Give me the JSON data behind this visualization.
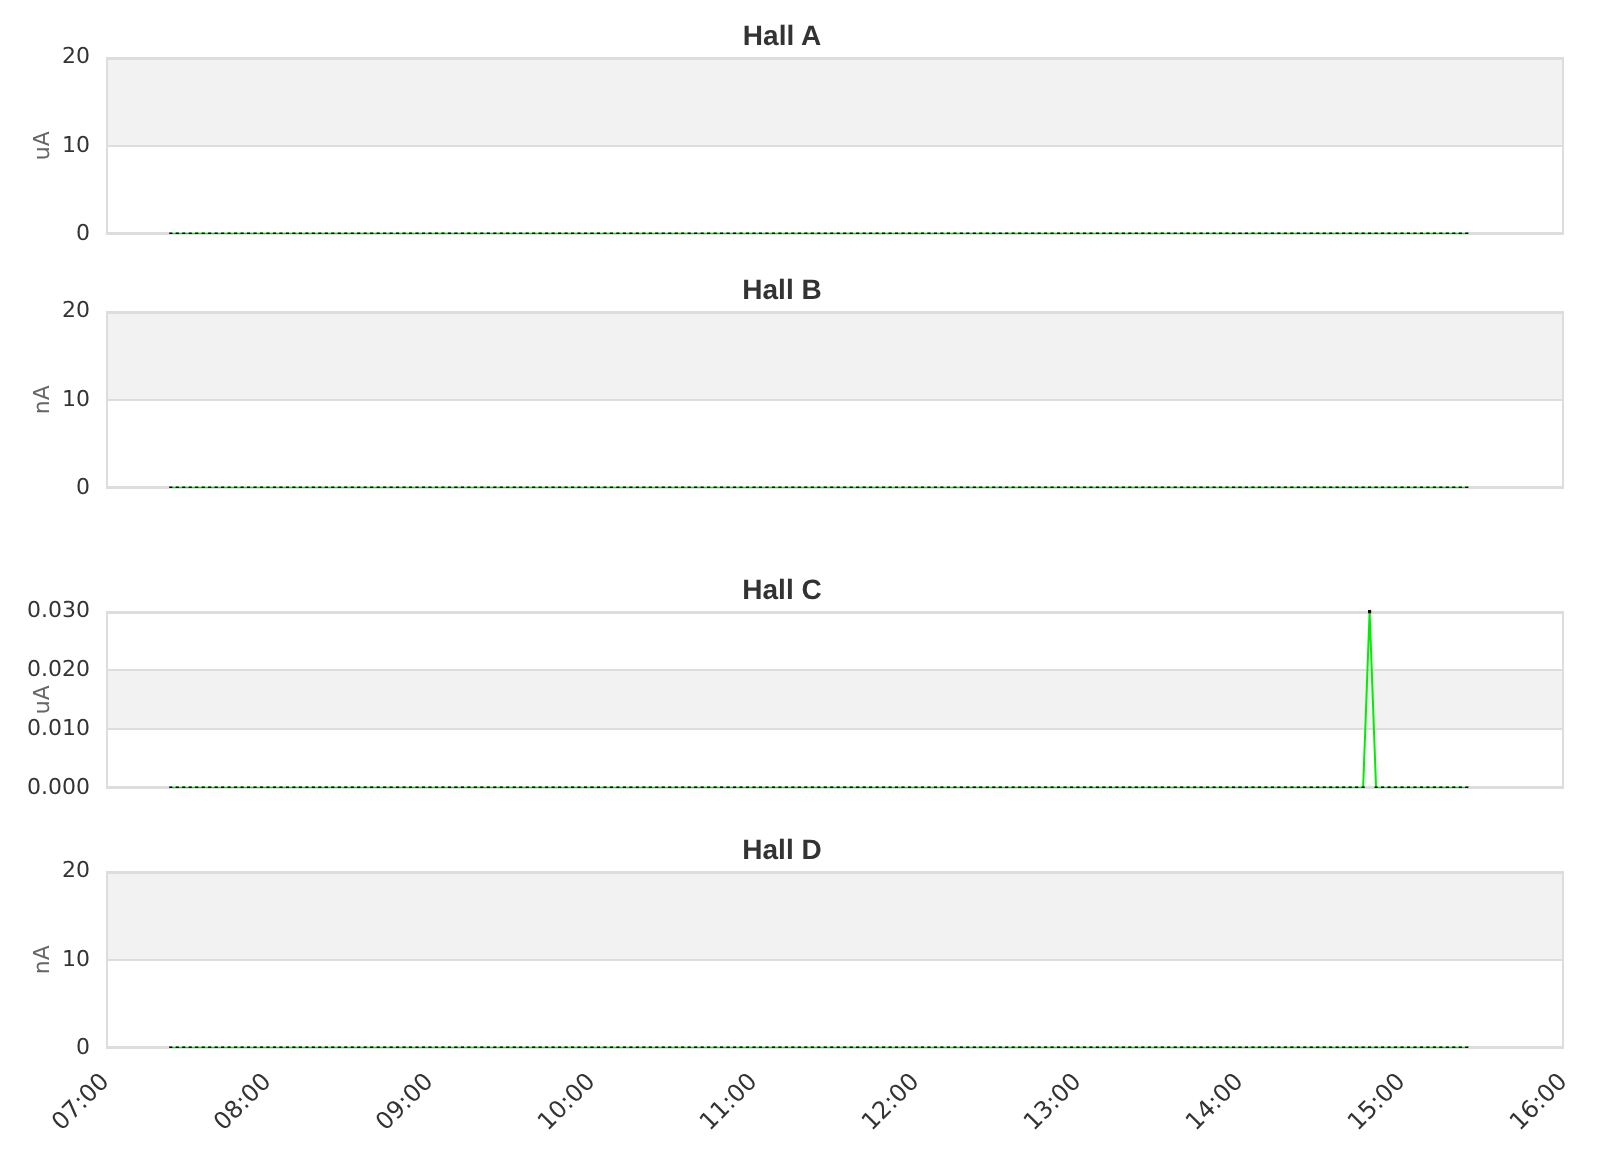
{
  "chart_data": [
    {
      "type": "line",
      "title": "Hall A",
      "ylabel": "uA",
      "tick_labels": "y",
      "grid": "y",
      "marker": "square",
      "x": [
        7.4,
        7.44,
        7.48,
        7.52,
        7.56,
        7.6,
        7.64,
        7.68,
        7.72,
        7.76,
        7.8,
        7.84,
        7.88,
        7.92,
        7.96,
        8,
        8.04,
        8.08,
        8.12,
        8.16,
        8.2,
        8.24,
        8.28,
        8.32,
        8.36,
        8.4,
        8.44,
        8.48,
        8.52,
        8.56,
        8.6,
        8.64,
        8.68,
        8.72,
        8.76,
        8.8,
        8.84,
        8.88,
        8.92,
        8.96,
        9,
        9.04,
        9.08,
        9.12,
        9.16,
        9.2,
        9.24,
        9.28,
        9.32,
        9.36,
        9.4,
        9.44,
        9.48,
        9.52,
        9.56,
        9.6,
        9.64,
        9.68,
        9.72,
        9.76,
        9.8,
        9.84,
        9.88,
        9.92,
        9.96,
        10,
        10.04,
        10.08,
        10.12,
        10.16,
        10.2,
        10.24,
        10.28,
        10.32,
        10.36,
        10.4,
        10.44,
        10.48,
        10.52,
        10.56,
        10.6,
        10.64,
        10.68,
        10.72,
        10.76,
        10.8,
        10.84,
        10.88,
        10.92,
        10.96,
        11,
        11.04,
        11.08,
        11.12,
        11.16,
        11.2,
        11.24,
        11.28,
        11.32,
        11.36,
        11.4,
        11.44,
        11.48,
        11.52,
        11.56,
        11.6,
        11.64,
        11.68,
        11.72,
        11.76,
        11.8,
        11.84,
        11.88,
        11.92,
        11.96,
        12,
        12.04,
        12.08,
        12.12,
        12.16,
        12.2,
        12.24,
        12.28,
        12.32,
        12.36,
        12.4,
        12.44,
        12.48,
        12.52,
        12.56,
        12.6,
        12.64,
        12.68,
        12.72,
        12.76,
        12.8,
        12.84,
        12.88,
        12.92,
        12.96,
        13,
        13.04,
        13.08,
        13.12,
        13.16,
        13.2,
        13.24,
        13.28,
        13.32,
        13.36,
        13.4,
        13.44,
        13.48,
        13.52,
        13.56,
        13.6,
        13.64,
        13.68,
        13.72,
        13.76,
        13.8,
        13.84,
        13.88,
        13.92,
        13.96,
        14,
        14.04,
        14.08,
        14.12,
        14.16,
        14.2,
        14.24,
        14.28,
        14.32,
        14.36,
        14.4,
        14.44,
        14.48,
        14.52,
        14.56,
        14.6,
        14.64,
        14.68,
        14.72,
        14.76,
        14.8,
        14.84,
        14.88,
        14.92,
        14.96,
        15,
        15.04,
        15.08,
        15.12,
        15.16,
        15.2,
        15.24,
        15.28,
        15.32,
        15.36,
        15.4
      ],
      "series": [
        {
          "color": "#00ee00",
          "values": [
            0,
            0,
            0,
            0,
            0,
            0,
            0,
            0,
            0,
            0,
            0,
            0,
            0,
            0,
            0,
            0,
            0,
            0,
            0,
            0,
            0,
            0,
            0,
            0,
            0,
            0,
            0,
            0,
            0,
            0,
            0,
            0,
            0,
            0,
            0,
            0,
            0,
            0,
            0,
            0,
            0,
            0,
            0,
            0,
            0,
            0,
            0,
            0,
            0,
            0,
            0,
            0,
            0,
            0,
            0,
            0,
            0,
            0,
            0,
            0,
            0,
            0,
            0,
            0,
            0,
            0,
            0,
            0,
            0,
            0,
            0,
            0,
            0,
            0,
            0,
            0,
            0,
            0,
            0,
            0,
            0,
            0,
            0,
            0,
            0,
            0,
            0,
            0,
            0,
            0,
            0,
            0,
            0,
            0,
            0,
            0,
            0,
            0,
            0,
            0,
            0,
            0,
            0,
            0,
            0,
            0,
            0,
            0,
            0,
            0,
            0,
            0,
            0,
            0,
            0,
            0,
            0,
            0,
            0,
            0,
            0,
            0,
            0,
            0,
            0,
            0,
            0,
            0,
            0,
            0,
            0,
            0,
            0,
            0,
            0,
            0,
            0,
            0,
            0,
            0,
            0,
            0,
            0,
            0,
            0,
            0,
            0,
            0,
            0,
            0,
            0,
            0,
            0,
            0,
            0,
            0,
            0,
            0,
            0,
            0,
            0,
            0,
            0,
            0,
            0,
            0,
            0,
            0,
            0,
            0,
            0,
            0,
            0,
            0,
            0,
            0,
            0,
            0,
            0,
            0,
            0,
            0,
            0,
            0,
            0,
            0,
            0,
            0,
            0,
            0,
            0,
            0,
            0,
            0,
            0,
            0,
            0,
            0,
            0,
            0,
            0
          ]
        }
      ],
      "xlim": [
        7,
        16
      ],
      "ylim": [
        0,
        20
      ],
      "yticks": [
        0,
        10,
        20
      ],
      "bands": [
        {
          "axis": "y",
          "from": 10,
          "to": 20,
          "color": "#f2f2f2"
        }
      ]
    },
    {
      "type": "line",
      "title": "Hall B",
      "ylabel": "nA",
      "tick_labels": "y",
      "grid": "y",
      "marker": "square",
      "x": [
        7.4,
        7.44,
        7.48,
        7.52,
        7.56,
        7.6,
        7.64,
        7.68,
        7.72,
        7.76,
        7.8,
        7.84,
        7.88,
        7.92,
        7.96,
        8,
        8.04,
        8.08,
        8.12,
        8.16,
        8.2,
        8.24,
        8.28,
        8.32,
        8.36,
        8.4,
        8.44,
        8.48,
        8.52,
        8.56,
        8.6,
        8.64,
        8.68,
        8.72,
        8.76,
        8.8,
        8.84,
        8.88,
        8.92,
        8.96,
        9,
        9.04,
        9.08,
        9.12,
        9.16,
        9.2,
        9.24,
        9.28,
        9.32,
        9.36,
        9.4,
        9.44,
        9.48,
        9.52,
        9.56,
        9.6,
        9.64,
        9.68,
        9.72,
        9.76,
        9.8,
        9.84,
        9.88,
        9.92,
        9.96,
        10,
        10.04,
        10.08,
        10.12,
        10.16,
        10.2,
        10.24,
        10.28,
        10.32,
        10.36,
        10.4,
        10.44,
        10.48,
        10.52,
        10.56,
        10.6,
        10.64,
        10.68,
        10.72,
        10.76,
        10.8,
        10.84,
        10.88,
        10.92,
        10.96,
        11,
        11.04,
        11.08,
        11.12,
        11.16,
        11.2,
        11.24,
        11.28,
        11.32,
        11.36,
        11.4,
        11.44,
        11.48,
        11.52,
        11.56,
        11.6,
        11.64,
        11.68,
        11.72,
        11.76,
        11.8,
        11.84,
        11.88,
        11.92,
        11.96,
        12,
        12.04,
        12.08,
        12.12,
        12.16,
        12.2,
        12.24,
        12.28,
        12.32,
        12.36,
        12.4,
        12.44,
        12.48,
        12.52,
        12.56,
        12.6,
        12.64,
        12.68,
        12.72,
        12.76,
        12.8,
        12.84,
        12.88,
        12.92,
        12.96,
        13,
        13.04,
        13.08,
        13.12,
        13.16,
        13.2,
        13.24,
        13.28,
        13.32,
        13.36,
        13.4,
        13.44,
        13.48,
        13.52,
        13.56,
        13.6,
        13.64,
        13.68,
        13.72,
        13.76,
        13.8,
        13.84,
        13.88,
        13.92,
        13.96,
        14,
        14.04,
        14.08,
        14.12,
        14.16,
        14.2,
        14.24,
        14.28,
        14.32,
        14.36,
        14.4,
        14.44,
        14.48,
        14.52,
        14.56,
        14.6,
        14.64,
        14.68,
        14.72,
        14.76,
        14.8,
        14.84,
        14.88,
        14.92,
        14.96,
        15,
        15.04,
        15.08,
        15.12,
        15.16,
        15.2,
        15.24,
        15.28,
        15.32,
        15.36,
        15.4
      ],
      "series": [
        {
          "color": "#00ee00",
          "values": [
            0,
            0,
            0,
            0,
            0,
            0,
            0,
            0,
            0,
            0,
            0,
            0,
            0,
            0,
            0,
            0,
            0,
            0,
            0,
            0,
            0,
            0,
            0,
            0,
            0,
            0,
            0,
            0,
            0,
            0,
            0,
            0,
            0,
            0,
            0,
            0,
            0,
            0,
            0,
            0,
            0,
            0,
            0,
            0,
            0,
            0,
            0,
            0,
            0,
            0,
            0,
            0,
            0,
            0,
            0,
            0,
            0,
            0,
            0,
            0,
            0,
            0,
            0,
            0,
            0,
            0,
            0,
            0,
            0,
            0,
            0,
            0,
            0,
            0,
            0,
            0,
            0,
            0,
            0,
            0,
            0,
            0,
            0,
            0,
            0,
            0,
            0,
            0,
            0,
            0,
            0,
            0,
            0,
            0,
            0,
            0,
            0,
            0,
            0,
            0,
            0,
            0,
            0,
            0,
            0,
            0,
            0,
            0,
            0,
            0,
            0,
            0,
            0,
            0,
            0,
            0,
            0,
            0,
            0,
            0,
            0,
            0,
            0,
            0,
            0,
            0,
            0,
            0,
            0,
            0,
            0,
            0,
            0,
            0,
            0,
            0,
            0,
            0,
            0,
            0,
            0,
            0,
            0,
            0,
            0,
            0,
            0,
            0,
            0,
            0,
            0,
            0,
            0,
            0,
            0,
            0,
            0,
            0,
            0,
            0,
            0,
            0,
            0,
            0,
            0,
            0,
            0,
            0,
            0,
            0,
            0,
            0,
            0,
            0,
            0,
            0,
            0,
            0,
            0,
            0,
            0,
            0,
            0,
            0,
            0,
            0,
            0,
            0,
            0,
            0,
            0,
            0,
            0,
            0,
            0,
            0,
            0,
            0,
            0,
            0,
            0
          ]
        }
      ],
      "xlim": [
        7,
        16
      ],
      "ylim": [
        0,
        20
      ],
      "yticks": [
        0,
        10,
        20
      ],
      "bands": [
        {
          "axis": "y",
          "from": 10,
          "to": 20,
          "color": "#f2f2f2"
        }
      ]
    },
    {
      "type": "line",
      "title": "Hall C",
      "ylabel": "uA",
      "tick_labels": "y",
      "grid": "y",
      "marker": "square",
      "x": [
        7.4,
        7.44,
        7.48,
        7.52,
        7.56,
        7.6,
        7.64,
        7.68,
        7.72,
        7.76,
        7.8,
        7.84,
        7.88,
        7.92,
        7.96,
        8,
        8.04,
        8.08,
        8.12,
        8.16,
        8.2,
        8.24,
        8.28,
        8.32,
        8.36,
        8.4,
        8.44,
        8.48,
        8.52,
        8.56,
        8.6,
        8.64,
        8.68,
        8.72,
        8.76,
        8.8,
        8.84,
        8.88,
        8.92,
        8.96,
        9,
        9.04,
        9.08,
        9.12,
        9.16,
        9.2,
        9.24,
        9.28,
        9.32,
        9.36,
        9.4,
        9.44,
        9.48,
        9.52,
        9.56,
        9.6,
        9.64,
        9.68,
        9.72,
        9.76,
        9.8,
        9.84,
        9.88,
        9.92,
        9.96,
        10,
        10.04,
        10.08,
        10.12,
        10.16,
        10.2,
        10.24,
        10.28,
        10.32,
        10.36,
        10.4,
        10.44,
        10.48,
        10.52,
        10.56,
        10.6,
        10.64,
        10.68,
        10.72,
        10.76,
        10.8,
        10.84,
        10.88,
        10.92,
        10.96,
        11,
        11.04,
        11.08,
        11.12,
        11.16,
        11.2,
        11.24,
        11.28,
        11.32,
        11.36,
        11.4,
        11.44,
        11.48,
        11.52,
        11.56,
        11.6,
        11.64,
        11.68,
        11.72,
        11.76,
        11.8,
        11.84,
        11.88,
        11.92,
        11.96,
        12,
        12.04,
        12.08,
        12.12,
        12.16,
        12.2,
        12.24,
        12.28,
        12.32,
        12.36,
        12.4,
        12.44,
        12.48,
        12.52,
        12.56,
        12.6,
        12.64,
        12.68,
        12.72,
        12.76,
        12.8,
        12.84,
        12.88,
        12.92,
        12.96,
        13,
        13.04,
        13.08,
        13.12,
        13.16,
        13.2,
        13.24,
        13.28,
        13.32,
        13.36,
        13.4,
        13.44,
        13.48,
        13.52,
        13.56,
        13.6,
        13.64,
        13.68,
        13.72,
        13.76,
        13.8,
        13.84,
        13.88,
        13.92,
        13.96,
        14,
        14.04,
        14.08,
        14.12,
        14.16,
        14.2,
        14.24,
        14.28,
        14.32,
        14.36,
        14.4,
        14.44,
        14.48,
        14.52,
        14.56,
        14.6,
        14.64,
        14.68,
        14.72,
        14.76,
        14.8,
        14.84,
        14.88,
        14.92,
        14.96,
        15,
        15.04,
        15.08,
        15.12,
        15.16,
        15.2,
        15.24,
        15.28,
        15.32,
        15.36,
        15.4
      ],
      "series": [
        {
          "color": "#00ee00",
          "values": [
            0,
            0,
            0,
            0,
            0,
            0,
            0,
            0,
            0,
            0,
            0,
            0,
            0,
            0,
            0,
            0,
            0,
            0,
            0,
            0,
            0,
            0,
            0,
            0,
            0,
            0,
            0,
            0,
            0,
            0,
            0,
            0,
            0,
            0,
            0,
            0,
            0,
            0,
            0,
            0,
            0,
            0,
            0,
            0,
            0,
            0,
            0,
            0,
            0,
            0,
            0,
            0,
            0,
            0,
            0,
            0,
            0,
            0,
            0,
            0,
            0,
            0,
            0,
            0,
            0,
            0,
            0,
            0,
            0,
            0,
            0,
            0,
            0,
            0,
            0,
            0,
            0,
            0,
            0,
            0,
            0,
            0,
            0,
            0,
            0,
            0,
            0,
            0,
            0,
            0,
            0,
            0,
            0,
            0,
            0,
            0,
            0,
            0,
            0,
            0,
            0,
            0,
            0,
            0,
            0,
            0,
            0,
            0,
            0,
            0,
            0,
            0,
            0,
            0,
            0,
            0,
            0,
            0,
            0,
            0,
            0,
            0,
            0,
            0,
            0,
            0,
            0,
            0,
            0,
            0,
            0,
            0,
            0,
            0,
            0,
            0,
            0,
            0,
            0,
            0,
            0,
            0,
            0,
            0,
            0,
            0,
            0,
            0,
            0,
            0,
            0,
            0,
            0,
            0,
            0,
            0,
            0,
            0,
            0,
            0,
            0,
            0,
            0,
            0,
            0,
            0,
            0,
            0,
            0,
            0,
            0,
            0,
            0,
            0,
            0,
            0,
            0,
            0,
            0,
            0,
            0,
            0,
            0,
            0,
            0,
            0.03,
            0,
            0,
            0,
            0,
            0,
            0,
            0,
            0,
            0,
            0,
            0,
            0,
            0,
            0,
            0
          ]
        }
      ],
      "xlim": [
        7,
        16
      ],
      "ylim": [
        0,
        0.03
      ],
      "yticks": [
        {
          "value": 0,
          "label": "0.000"
        },
        {
          "value": 0.01,
          "label": "0.010"
        },
        {
          "value": 0.02,
          "label": "0.020"
        },
        {
          "value": 0.03,
          "label": "0.030"
        }
      ],
      "bands": [
        {
          "axis": "y",
          "from": 0.01,
          "to": 0.02,
          "color": "#f2f2f2"
        }
      ]
    },
    {
      "type": "line",
      "title": "Hall D",
      "ylabel": "nA",
      "grid": "y",
      "marker": "square",
      "x": [
        7.4,
        7.44,
        7.48,
        7.52,
        7.56,
        7.6,
        7.64,
        7.68,
        7.72,
        7.76,
        7.8,
        7.84,
        7.88,
        7.92,
        7.96,
        8,
        8.04,
        8.08,
        8.12,
        8.16,
        8.2,
        8.24,
        8.28,
        8.32,
        8.36,
        8.4,
        8.44,
        8.48,
        8.52,
        8.56,
        8.6,
        8.64,
        8.68,
        8.72,
        8.76,
        8.8,
        8.84,
        8.88,
        8.92,
        8.96,
        9,
        9.04,
        9.08,
        9.12,
        9.16,
        9.2,
        9.24,
        9.28,
        9.32,
        9.36,
        9.4,
        9.44,
        9.48,
        9.52,
        9.56,
        9.6,
        9.64,
        9.68,
        9.72,
        9.76,
        9.8,
        9.84,
        9.88,
        9.92,
        9.96,
        10,
        10.04,
        10.08,
        10.12,
        10.16,
        10.2,
        10.24,
        10.28,
        10.32,
        10.36,
        10.4,
        10.44,
        10.48,
        10.52,
        10.56,
        10.6,
        10.64,
        10.68,
        10.72,
        10.76,
        10.8,
        10.84,
        10.88,
        10.92,
        10.96,
        11,
        11.04,
        11.08,
        11.12,
        11.16,
        11.2,
        11.24,
        11.28,
        11.32,
        11.36,
        11.4,
        11.44,
        11.48,
        11.52,
        11.56,
        11.6,
        11.64,
        11.68,
        11.72,
        11.76,
        11.8,
        11.84,
        11.88,
        11.92,
        11.96,
        12,
        12.04,
        12.08,
        12.12,
        12.16,
        12.2,
        12.24,
        12.28,
        12.32,
        12.36,
        12.4,
        12.44,
        12.48,
        12.52,
        12.56,
        12.6,
        12.64,
        12.68,
        12.72,
        12.76,
        12.8,
        12.84,
        12.88,
        12.92,
        12.96,
        13,
        13.04,
        13.08,
        13.12,
        13.16,
        13.2,
        13.24,
        13.28,
        13.32,
        13.36,
        13.4,
        13.44,
        13.48,
        13.52,
        13.56,
        13.6,
        13.64,
        13.68,
        13.72,
        13.76,
        13.8,
        13.84,
        13.88,
        13.92,
        13.96,
        14,
        14.04,
        14.08,
        14.12,
        14.16,
        14.2,
        14.24,
        14.28,
        14.32,
        14.36,
        14.4,
        14.44,
        14.48,
        14.52,
        14.56,
        14.6,
        14.64,
        14.68,
        14.72,
        14.76,
        14.8,
        14.84,
        14.88,
        14.92,
        14.96,
        15,
        15.04,
        15.08,
        15.12,
        15.16,
        15.2,
        15.24,
        15.28,
        15.32,
        15.36,
        15.4
      ],
      "series": [
        {
          "color": "#00ee00",
          "values": [
            0,
            0,
            0,
            0,
            0,
            0,
            0,
            0,
            0,
            0,
            0,
            0,
            0,
            0,
            0,
            0,
            0,
            0,
            0,
            0,
            0,
            0,
            0,
            0,
            0,
            0,
            0,
            0,
            0,
            0,
            0,
            0,
            0,
            0,
            0,
            0,
            0,
            0,
            0,
            0,
            0,
            0,
            0,
            0,
            0,
            0,
            0,
            0,
            0,
            0,
            0,
            0,
            0,
            0,
            0,
            0,
            0,
            0,
            0,
            0,
            0,
            0,
            0,
            0,
            0,
            0,
            0,
            0,
            0,
            0,
            0,
            0,
            0,
            0,
            0,
            0,
            0,
            0,
            0,
            0,
            0,
            0,
            0,
            0,
            0,
            0,
            0,
            0,
            0,
            0,
            0,
            0,
            0,
            0,
            0,
            0,
            0,
            0,
            0,
            0,
            0,
            0,
            0,
            0,
            0,
            0,
            0,
            0,
            0,
            0,
            0,
            0,
            0,
            0,
            0,
            0,
            0,
            0,
            0,
            0,
            0,
            0,
            0,
            0,
            0,
            0,
            0,
            0,
            0,
            0,
            0,
            0,
            0,
            0,
            0,
            0,
            0,
            0,
            0,
            0,
            0,
            0,
            0,
            0,
            0,
            0,
            0,
            0,
            0,
            0,
            0,
            0,
            0,
            0,
            0,
            0,
            0,
            0,
            0,
            0,
            0,
            0,
            0,
            0,
            0,
            0,
            0,
            0,
            0,
            0,
            0,
            0,
            0,
            0,
            0,
            0,
            0,
            0,
            0,
            0,
            0,
            0,
            0,
            0,
            0,
            0,
            0,
            0,
            0,
            0,
            0,
            0,
            0,
            0,
            0,
            0,
            0,
            0,
            0,
            0,
            0
          ]
        }
      ],
      "xlim": [
        7,
        16
      ],
      "xticks": [
        {
          "value": 7,
          "label": "07:00"
        },
        {
          "value": 8,
          "label": "08:00"
        },
        {
          "value": 9,
          "label": "09:00"
        },
        {
          "value": 10,
          "label": "10:00"
        },
        {
          "value": 11,
          "label": "11:00"
        },
        {
          "value": 12,
          "label": "12:00"
        },
        {
          "value": 13,
          "label": "13:00"
        },
        {
          "value": 14,
          "label": "14:00"
        },
        {
          "value": 15,
          "label": "15:00"
        },
        {
          "value": 16,
          "label": "16:00"
        }
      ],
      "ylim": [
        0,
        20
      ],
      "yticks": [
        0,
        10,
        20
      ],
      "bands": [
        {
          "axis": "y",
          "from": 10,
          "to": 20,
          "color": "#f2f2f2"
        }
      ]
    }
  ]
}
